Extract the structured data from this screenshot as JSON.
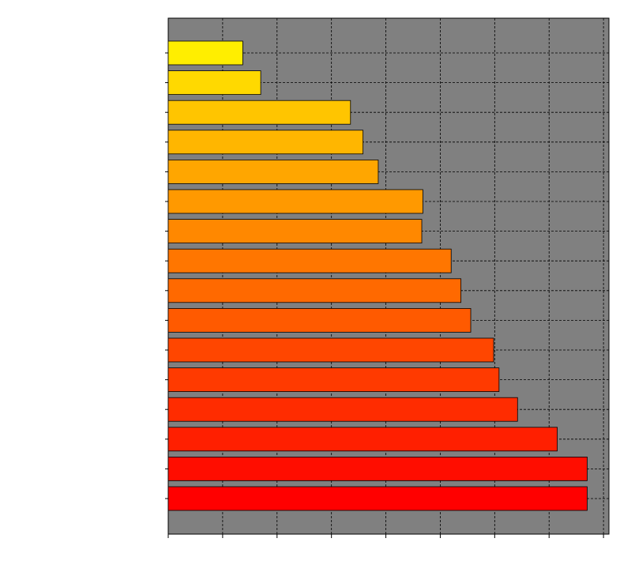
{
  "chart_data": {
    "type": "bar",
    "orientation": "horizontal",
    "title": "",
    "xlabel": "",
    "ylabel": "",
    "xlim": [
      0,
      8.1
    ],
    "x_gridline_step": 1,
    "grid": true,
    "legend": "none",
    "tick_labels_visible": false,
    "plot_background": "#808080",
    "values": [
      7.7,
      7.7,
      7.15,
      6.42,
      6.08,
      5.98,
      5.56,
      5.38,
      5.2,
      4.66,
      4.68,
      3.86,
      3.58,
      3.35,
      1.7,
      1.37
    ],
    "bar_colors": [
      "#ff0000",
      "#ff0d00",
      "#ff1f00",
      "#ff2c00",
      "#ff3a00",
      "#ff4600",
      "#ff5a00",
      "#ff6900",
      "#ff7600",
      "#ff8800",
      "#ff9900",
      "#ffa600",
      "#ffb600",
      "#ffc500",
      "#ffd900",
      "#ffee00"
    ]
  }
}
